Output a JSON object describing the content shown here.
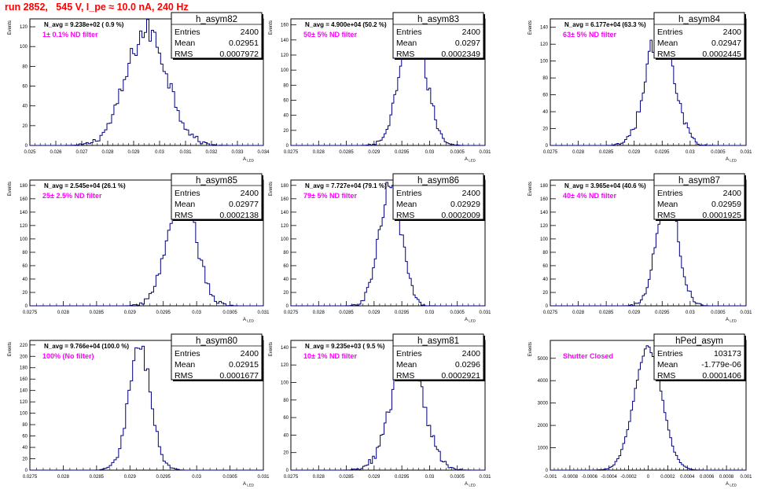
{
  "run_title": "run 2852,   545 V, I_pe ≈ 10.0 nA, 240 Hz",
  "colors": {
    "histogram": "#000080",
    "annotation": "#ff00ff",
    "title": "#ff0000"
  },
  "chart_data": [
    {
      "type": "histogram",
      "title": "h_asym82",
      "stats": [
        [
          "Entries",
          "2400"
        ],
        [
          "Mean",
          "0.02951"
        ],
        [
          "RMS",
          "0.0007972"
        ]
      ],
      "navg": "N_avg = 9.238e+02 ( 0.9 %)",
      "label": "1± 0.1% ND filter",
      "ylabel": "Events",
      "xlabel": "A_{LED}",
      "xlim": [
        0.025,
        0.034
      ],
      "ylim": [
        0,
        128
      ],
      "xticks": [
        "0.025",
        "0.026",
        "0.027",
        "0.028",
        "0.029",
        "0.03",
        "0.031",
        "0.032",
        "0.033",
        "0.034"
      ],
      "yticks": [
        0,
        20,
        40,
        60,
        80,
        100,
        120
      ],
      "peak": 116,
      "mean": 0.02951,
      "sigma": 0.0007972
    },
    {
      "type": "histogram",
      "title": "h_asym83",
      "stats": [
        [
          "Entries",
          "2400"
        ],
        [
          "Mean",
          "0.0297"
        ],
        [
          "RMS",
          "0.0002349"
        ]
      ],
      "navg": "N_avg = 4.900e+04 (50.2 %)",
      "label": "50± 5% ND filter",
      "ylabel": "Events",
      "xlabel": "A_{LED}",
      "xlim": [
        0.0275,
        0.031
      ],
      "ylim": [
        0,
        168
      ],
      "xticks": [
        "0.0275",
        "0.028",
        "0.0285",
        "0.029",
        "0.0295",
        "0.03",
        "0.0305",
        "0.031"
      ],
      "yticks": [
        0,
        20,
        40,
        60,
        80,
        100,
        120,
        140,
        160
      ],
      "peak": 158,
      "mean": 0.0297,
      "sigma": 0.0002349
    },
    {
      "type": "histogram",
      "title": "h_asym84",
      "stats": [
        [
          "Entries",
          "2400"
        ],
        [
          "Mean",
          "0.02947"
        ],
        [
          "RMS",
          "0.0002445"
        ]
      ],
      "navg": "N_avg = 6.177e+04 (63.3 %)",
      "label": "63± 5% ND filter",
      "ylabel": "Events",
      "xlabel": "A_{LED}",
      "xlim": [
        0.0275,
        0.031
      ],
      "ylim": [
        0,
        150
      ],
      "xticks": [
        "0.0275",
        "0.028",
        "0.0285",
        "0.029",
        "0.0295",
        "0.03",
        "0.0305",
        "0.031"
      ],
      "yticks": [
        0,
        20,
        40,
        60,
        80,
        100,
        120,
        140
      ],
      "peak": 142,
      "mean": 0.02947,
      "sigma": 0.0002445
    },
    {
      "type": "histogram",
      "title": "h_asym85",
      "stats": [
        [
          "Entries",
          "2400"
        ],
        [
          "Mean",
          "0.02977"
        ],
        [
          "RMS",
          "0.0002138"
        ]
      ],
      "navg": "N_avg = 2.545e+04 (26.1 %)",
      "label": "25± 2.5% ND filter",
      "ylabel": "Events",
      "xlabel": "A_{LED}",
      "xlim": [
        0.0275,
        0.031
      ],
      "ylim": [
        0,
        188
      ],
      "xticks": [
        "0.0275",
        "0.028",
        "0.0285",
        "0.029",
        "0.0295",
        "0.03",
        "0.0305",
        "0.031"
      ],
      "yticks": [
        0,
        20,
        40,
        60,
        80,
        100,
        120,
        140,
        160,
        180
      ],
      "peak": 176,
      "mean": 0.02977,
      "sigma": 0.0002138
    },
    {
      "type": "histogram",
      "title": "h_asym86",
      "stats": [
        [
          "Entries",
          "2400"
        ],
        [
          "Mean",
          "0.02929"
        ],
        [
          "RMS",
          "0.0002009"
        ]
      ],
      "navg": "N_avg = 7.727e+04 (79.1 %)",
      "label": "79± 5% ND filter",
      "ylabel": "Events",
      "xlabel": "A_{LED}",
      "xlim": [
        0.0275,
        0.031
      ],
      "ylim": [
        0,
        188
      ],
      "xticks": [
        "0.0275",
        "0.028",
        "0.0285",
        "0.029",
        "0.0295",
        "0.03",
        "0.0305",
        "0.031"
      ],
      "yticks": [
        0,
        20,
        40,
        60,
        80,
        100,
        120,
        140,
        160,
        180
      ],
      "peak": 178,
      "mean": 0.02929,
      "sigma": 0.0002009
    },
    {
      "type": "histogram",
      "title": "h_asym87",
      "stats": [
        [
          "Entries",
          "2400"
        ],
        [
          "Mean",
          "0.02959"
        ],
        [
          "RMS",
          "0.0001925"
        ]
      ],
      "navg": "N_avg = 3.965e+04 (40.6 %)",
      "label": "40± 4% ND filter",
      "ylabel": "Events",
      "xlabel": "A_{LED}",
      "xlim": [
        0.0275,
        0.031
      ],
      "ylim": [
        0,
        188
      ],
      "xticks": [
        "0.0275",
        "0.028",
        "0.0285",
        "0.029",
        "0.0295",
        "0.03",
        "0.0305",
        "0.031"
      ],
      "yticks": [
        0,
        20,
        40,
        60,
        80,
        100,
        120,
        140,
        160,
        180
      ],
      "peak": 180,
      "mean": 0.02959,
      "sigma": 0.0001925
    },
    {
      "type": "histogram",
      "title": "h_asym80",
      "stats": [
        [
          "Entries",
          "2400"
        ],
        [
          "Mean",
          "0.02915"
        ],
        [
          "RMS",
          "0.0001677"
        ]
      ],
      "navg": "N_avg = 9.766e+04 (100.0 %)",
      "label": "100% (No filter)",
      "ylabel": "Events",
      "xlabel": "A_{LED}",
      "xlim": [
        0.0275,
        0.031
      ],
      "ylim": [
        0,
        228
      ],
      "xticks": [
        "0.0275",
        "0.028",
        "0.0285",
        "0.029",
        "0.0295",
        "0.03",
        "0.0305",
        "0.031"
      ],
      "yticks": [
        0,
        20,
        40,
        60,
        80,
        100,
        120,
        140,
        160,
        180,
        200,
        220
      ],
      "peak": 212,
      "mean": 0.02915,
      "sigma": 0.0001677
    },
    {
      "type": "histogram",
      "title": "h_asym81",
      "stats": [
        [
          "Entries",
          "2400"
        ],
        [
          "Mean",
          "0.0296"
        ],
        [
          "RMS",
          "0.0002921"
        ]
      ],
      "navg": "N_avg = 9.235e+03 ( 9.5 %)",
      "label": "10± 1% ND filter",
      "ylabel": "Events",
      "xlabel": "A_{LED}",
      "xlim": [
        0.0275,
        0.031
      ],
      "ylim": [
        0,
        148
      ],
      "xticks": [
        "0.0275",
        "0.028",
        "0.0285",
        "0.029",
        "0.0295",
        "0.03",
        "0.0305",
        "0.031"
      ],
      "yticks": [
        0,
        20,
        40,
        60,
        80,
        100,
        120,
        140
      ],
      "peak": 130,
      "mean": 0.0296,
      "sigma": 0.0002921
    },
    {
      "type": "histogram",
      "title": "hPed_asym",
      "stats": [
        [
          "Entries",
          "103173"
        ],
        [
          "Mean",
          "-1.779e-06"
        ],
        [
          "RMS",
          "0.0001406"
        ]
      ],
      "navg": "",
      "label": "Shutter Closed",
      "ylabel": "Events",
      "xlabel": "A_{LED}",
      "xlim": [
        -0.001,
        0.001
      ],
      "ylim": [
        0,
        5800
      ],
      "xticks": [
        "-0.001",
        "-0.0008",
        "-0.0006",
        "-0.0004",
        "-0.0002",
        "0",
        "0.0002",
        "0.0004",
        "0.0006",
        "0.0008",
        "0.001"
      ],
      "yticks": [
        0,
        1000,
        2000,
        3000,
        4000,
        5000
      ],
      "peak": 5480,
      "mean": -1.779e-06,
      "sigma": 0.0001406
    }
  ]
}
